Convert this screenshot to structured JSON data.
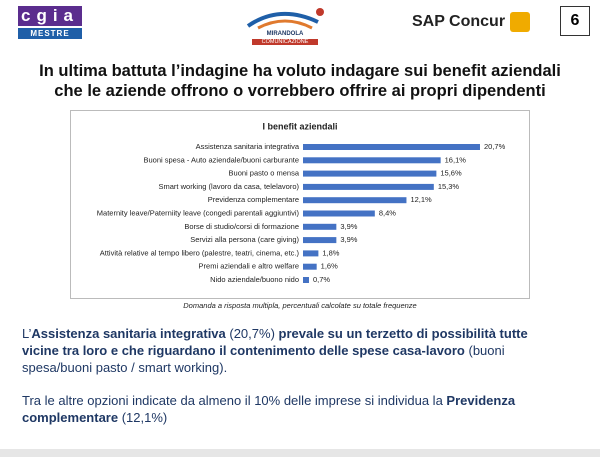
{
  "header": {
    "logo_left": "cgia",
    "logo_left_sub": "MESTRE",
    "logo_center": "MIRANDOLA",
    "logo_center_sub": "COMUNICAZIONE",
    "brand": "SAP Concur",
    "page_number": "6"
  },
  "slide_title": [
    "In ultima battuta l’indagine ha voluto indagare sui benefit aziendali",
    "che le aziende offrono o vorrebbero offrire ai propri dipendenti"
  ],
  "chart_data": {
    "type": "bar",
    "orientation": "horizontal",
    "title": "I benefit aziendali",
    "categories": [
      "Assistenza sanitaria integrativa",
      "Buoni spesa - Auto aziendale/buoni carburante",
      "Buoni pasto o mensa",
      "Smart working (lavoro da casa, telelavoro)",
      "Previdenza complementare",
      "Maternity leave/Paterniity leave (congedi parentali aggiuntivi)",
      "Borse di studio/corsi di formazione",
      "Servizi alla persona (care giving)",
      "Attività relative al tempo libero (palestre, teatri, cinema, etc.)",
      "Premi aziendali e altro welfare",
      "Nido aziendale/buono nido"
    ],
    "values": [
      20.7,
      16.1,
      15.6,
      15.3,
      12.1,
      8.4,
      3.9,
      3.9,
      1.8,
      1.6,
      0.7
    ],
    "value_labels": [
      "20,7%",
      "16,1%",
      "15,6%",
      "15,3%",
      "12,1%",
      "8,4%",
      "3,9%",
      "3,9%",
      "1,8%",
      "1,6%",
      "0,7%"
    ],
    "color": "#4472c4",
    "note": "Domanda a risposta multipla, percentuali calcolate su totale frequenze"
  },
  "paragraphs": [
    {
      "segments": [
        {
          "text": "L’",
          "bold": false
        },
        {
          "text": "Assistenza sanitaria integrativa",
          "bold": true
        },
        {
          "text": " (20,7%) ",
          "bold": false
        },
        {
          "text": "prevale su un terzetto di possibilità tutte vicine tra loro e che riguardano il contenimento delle spese casa-lavoro",
          "bold": true
        },
        {
          "text": " (buoni spesa/buoni pasto / smart working).",
          "bold": false
        }
      ]
    },
    {
      "segments": [
        {
          "text": "Tra le altre opzioni indicate da almeno il 10% delle imprese si individua la ",
          "bold": false
        },
        {
          "text": "Previdenza complementare",
          "bold": true
        },
        {
          "text": " (12,1%)",
          "bold": false
        }
      ]
    }
  ]
}
